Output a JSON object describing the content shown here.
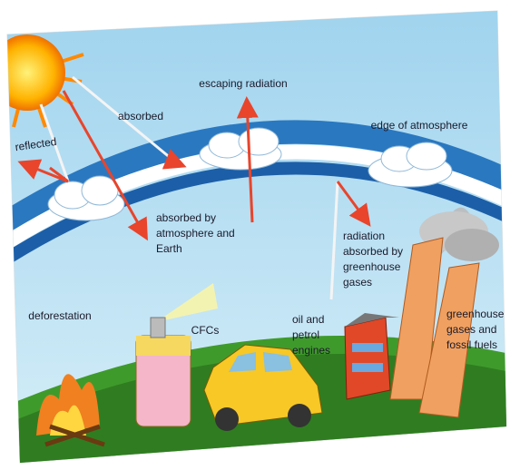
{
  "labels": [
    [
      "escaping radiation"
    ],
    [
      "absorbed"
    ],
    [
      "edge of atmosphere"
    ],
    [
      "reflected"
    ],
    [
      "absorbed by",
      "atmosphere and",
      "Earth"
    ],
    [
      "radiation",
      "absorbed by",
      "greenhouse",
      "gases"
    ],
    [
      "deforestation"
    ],
    [
      "CFCs"
    ],
    [
      "oil and",
      "petrol",
      "engines"
    ],
    [
      "greenhouse",
      "gases and",
      "fossil fuels"
    ]
  ]
}
